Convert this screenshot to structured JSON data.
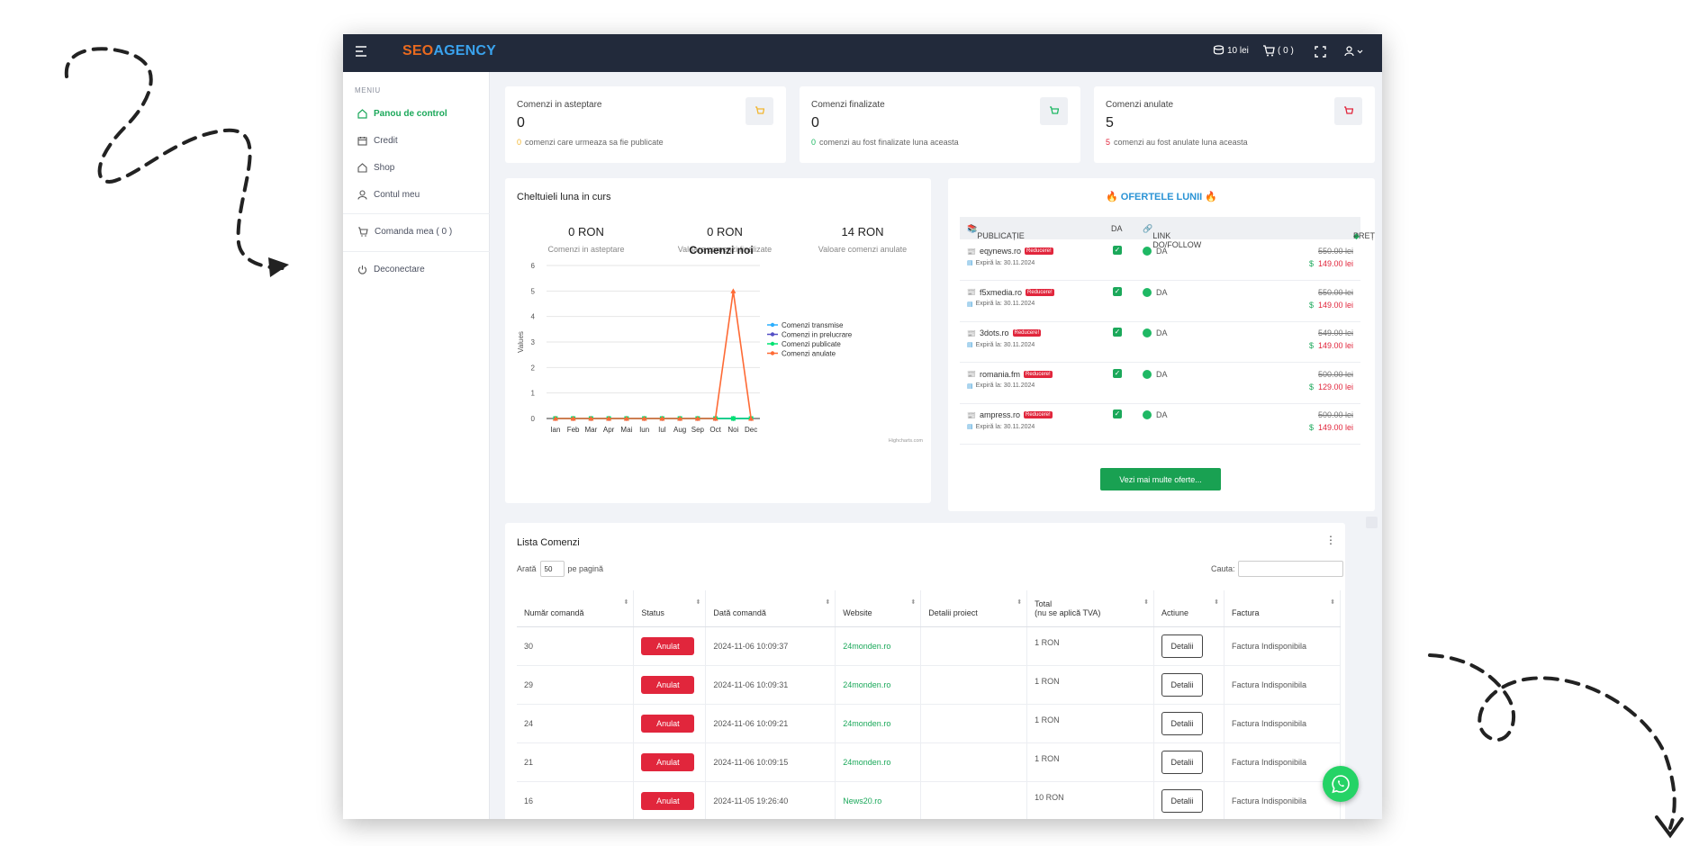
{
  "app": {
    "logo_seo": "SEO",
    "logo_agency": "AGENCY",
    "balance": "10 lei",
    "cart_count": "( 0 )"
  },
  "sidebar": {
    "caption": "MENIU",
    "items": [
      {
        "label": "Panou de control",
        "icon": "home-icon"
      },
      {
        "label": "Credit",
        "icon": "calendar-icon"
      },
      {
        "label": "Shop",
        "icon": "home-icon"
      },
      {
        "label": "Contul meu",
        "icon": "user-icon"
      },
      {
        "label": "Comanda mea ( 0 )",
        "icon": "cart-icon"
      },
      {
        "label": "Deconectare",
        "icon": "power-icon"
      }
    ]
  },
  "stats": [
    {
      "label": "Comenzi in asteptare",
      "value": "0",
      "sub_count": "0",
      "sub_text": "comenzi care urmeaza sa fie publicate",
      "color": "#f2b630"
    },
    {
      "label": "Comenzi finalizate",
      "value": "0",
      "sub_count": "0",
      "sub_text": "comenzi au fost finalizate luna aceasta",
      "color": "#1fb864"
    },
    {
      "label": "Comenzi anulate",
      "value": "5",
      "sub_count": "5",
      "sub_text": "comenzi au fost anulate luna aceasta",
      "color": "#e1263c"
    }
  ],
  "expenses": {
    "title": "Cheltuieli luna in curs",
    "kpis": [
      {
        "value": "0 RON",
        "caption": "Comenzi in asteptare"
      },
      {
        "value": "0 RON",
        "caption": "Valoare comenzi finalizate"
      },
      {
        "value": "14 RON",
        "caption": "Valoare comenzi anulate"
      }
    ]
  },
  "chart_data": {
    "type": "line",
    "title": "Comenzi noi",
    "ylabel": "Values",
    "credit": "Highcharts.com",
    "ylim": [
      0,
      6
    ],
    "yticks": [
      0,
      1,
      2,
      3,
      4,
      5,
      6
    ],
    "categories": [
      "Ian",
      "Feb",
      "Mar",
      "Apr",
      "Mai",
      "Iun",
      "Iul",
      "Aug",
      "Sep",
      "Oct",
      "Noi",
      "Dec"
    ],
    "series": [
      {
        "name": "Comenzi transmise",
        "color": "#2caffe",
        "marker": "circle",
        "values": [
          0,
          0,
          0,
          0,
          0,
          0,
          0,
          0,
          0,
          0,
          0,
          0
        ]
      },
      {
        "name": "Comenzi in prelucrare",
        "color": "#544fc5",
        "marker": "diamond",
        "values": [
          0,
          0,
          0,
          0,
          0,
          0,
          0,
          0,
          0,
          0,
          0,
          0
        ]
      },
      {
        "name": "Comenzi publicate",
        "color": "#00e272",
        "marker": "square",
        "values": [
          0,
          0,
          0,
          0,
          0,
          0,
          0,
          0,
          0,
          0,
          0,
          0
        ]
      },
      {
        "name": "Comenzi anulate",
        "color": "#fe6a35",
        "marker": "triangle",
        "values": [
          0,
          0,
          0,
          0,
          0,
          0,
          0,
          0,
          0,
          0,
          5,
          0
        ]
      }
    ]
  },
  "offers": {
    "title": "OFERTELE LUNII",
    "col_publication": "PUBLICAȚIE",
    "col_da": "DA",
    "col_link": "LINK DO/FOLLOW",
    "col_price": "PREȚ",
    "discount_label": "Reducere!",
    "rows": [
      {
        "site": "eqynews.ro",
        "expires": "Expiră la: 30.11.2024",
        "link": "DA",
        "old_price": "550.00 lei",
        "new_price": "149.00 lei"
      },
      {
        "site": "f5xmedia.ro",
        "expires": "Expiră la: 30.11.2024",
        "link": "DA",
        "old_price": "550.00 lei",
        "new_price": "149.00 lei"
      },
      {
        "site": "3dots.ro",
        "expires": "Expiră la: 30.11.2024",
        "link": "DA",
        "old_price": "549.00 lei",
        "new_price": "149.00 lei"
      },
      {
        "site": "romania.fm",
        "expires": "Expiră la: 30.11.2024",
        "link": "DA",
        "old_price": "500.00 lei",
        "new_price": "129.00 lei"
      },
      {
        "site": "ampress.ro",
        "expires": "Expiră la: 30.11.2024",
        "link": "DA",
        "old_price": "500.00 lei",
        "new_price": "149.00 lei"
      }
    ],
    "button": "Vezi mai multe oferte..."
  },
  "orders": {
    "title": "Lista Comenzi",
    "show_label": "Arată",
    "per_page": "50",
    "per_page_suffix": "pe pagină",
    "search_label": "Cauta:",
    "headers": {
      "number": "Număr comandă",
      "status": "Status",
      "date": "Dată comandă",
      "website": "Website",
      "details": "Detalii proiect",
      "total_line1": "Total",
      "total_line2": "(nu se aplică TVA)",
      "actions": "Actiune",
      "invoice": "Factura"
    },
    "rows": [
      {
        "number": "30",
        "status": "Anulat",
        "date": "2024-11-06 10:09:37",
        "website": "24monden.ro",
        "details": "",
        "total": "1 RON",
        "action": "Detalii",
        "invoice": "Factura Indisponibila"
      },
      {
        "number": "29",
        "status": "Anulat",
        "date": "2024-11-06 10:09:31",
        "website": "24monden.ro",
        "details": "",
        "total": "1 RON",
        "action": "Detalii",
        "invoice": "Factura Indisponibila"
      },
      {
        "number": "24",
        "status": "Anulat",
        "date": "2024-11-06 10:09:21",
        "website": "24monden.ro",
        "details": "",
        "total": "1 RON",
        "action": "Detalii",
        "invoice": "Factura Indisponibila"
      },
      {
        "number": "21",
        "status": "Anulat",
        "date": "2024-11-06 10:09:15",
        "website": "24monden.ro",
        "details": "",
        "total": "1 RON",
        "action": "Detalii",
        "invoice": "Factura Indisponibila"
      },
      {
        "number": "16",
        "status": "Anulat",
        "date": "2024-11-05 19:26:40",
        "website": "News20.ro",
        "details": "",
        "total": "10 RON",
        "action": "Detalii",
        "invoice": "Factura Indisponibila"
      }
    ]
  }
}
